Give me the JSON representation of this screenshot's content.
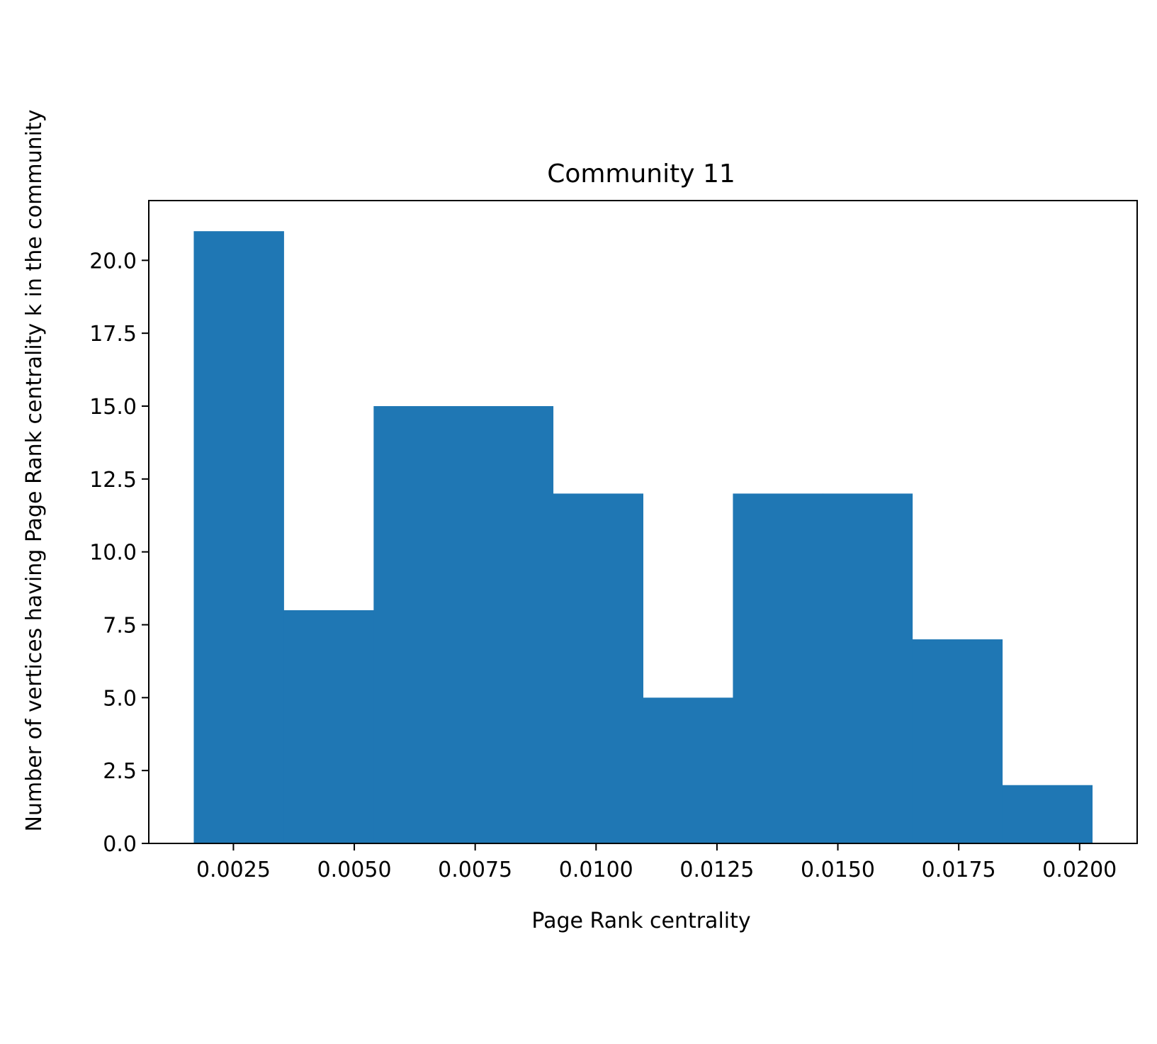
{
  "chart_data": {
    "type": "bar",
    "title": "Community 11",
    "xlabel": "Page Rank centrality",
    "ylabel": "Number of vertices having Page Rank centrality k in the community",
    "bin_edges": [
      0.00168,
      0.00354,
      0.0054,
      0.00725,
      0.00911,
      0.01097,
      0.01283,
      0.01469,
      0.01654,
      0.0184,
      0.02026
    ],
    "values": [
      21,
      8,
      15,
      15,
      12,
      5,
      12,
      12,
      7,
      2
    ],
    "xlim": [
      0.00075,
      0.02119
    ],
    "ylim": [
      0,
      22.05
    ],
    "xticks": [
      0.0025,
      0.005,
      0.0075,
      0.01,
      0.0125,
      0.015,
      0.0175,
      0.02
    ],
    "xtick_labels": [
      "0.0025",
      "0.0050",
      "0.0075",
      "0.0100",
      "0.0125",
      "0.0150",
      "0.0175",
      "0.0200"
    ],
    "yticks": [
      0,
      2.5,
      5,
      7.5,
      10,
      12.5,
      15,
      17.5,
      20
    ],
    "ytick_labels": [
      "0.0",
      "2.5",
      "5.0",
      "7.5",
      "10.0",
      "12.5",
      "15.0",
      "17.5",
      "20.0"
    ],
    "bar_color": "#1f77b4",
    "grid": false,
    "legend": "none"
  }
}
